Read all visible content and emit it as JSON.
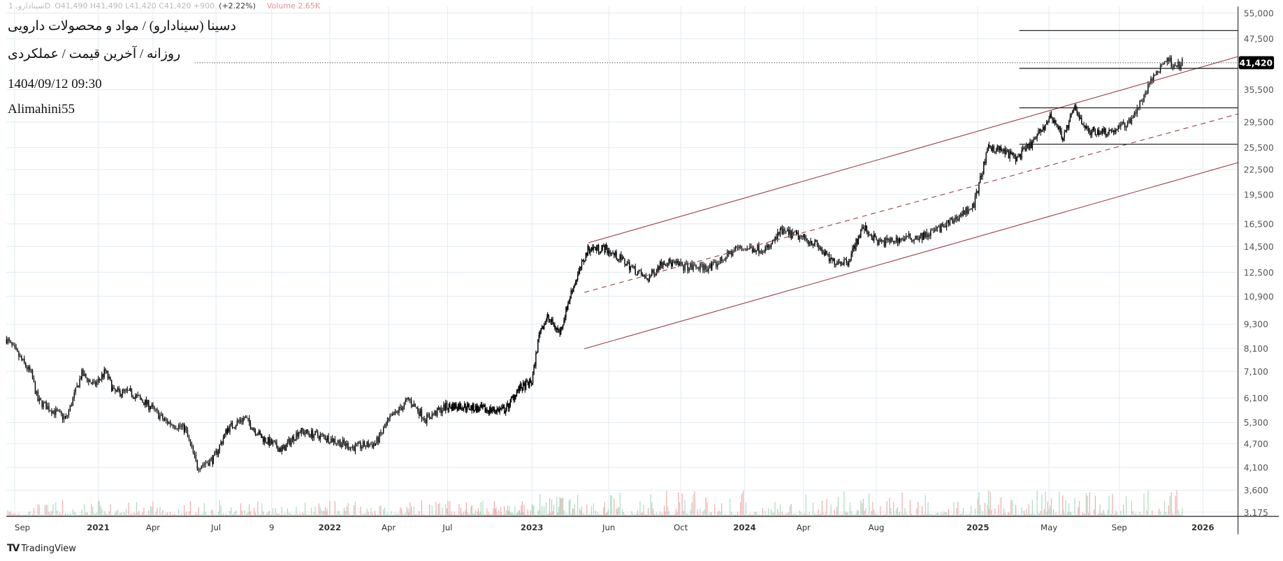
{
  "legend": {
    "symbol": "سینادارو, 1D",
    "ohlc": "O41,490 H41,490 L41,420 C41,420 +900",
    "change": "(+2.22%)",
    "volume": "Volume 2.65K"
  },
  "overlay": {
    "title": "دسینا (سینادارو) / مواد و محصولات دارویی",
    "subtitle": "روزانه / آخرین قیمت / عملکردی",
    "datetime": "1404/09/12 09:30",
    "author": "Alimahini55"
  },
  "footer": {
    "brand": "TradingView",
    "logo_icon": "tradingview-logo-icon"
  },
  "chart_data": {
    "type": "candlestick",
    "yscale": "log",
    "ylim": [
      3175,
      55000
    ],
    "grid": true,
    "last_price": 41420,
    "last_price_label": "41,420",
    "colors": {
      "candle": "#000000",
      "trendline": "#a04a50",
      "volume_up": "#a8dcc0",
      "volume_down": "#f4a8a8",
      "last_price_bg": "#000000"
    },
    "yticks": [
      "55,000",
      "47,500",
      "35,500",
      "29,500",
      "25,500",
      "22,500",
      "19,500",
      "16,500",
      "14,500",
      "12,500",
      "10,900",
      "9,300",
      "8,100",
      "7,100",
      "6,100",
      "5,300",
      "4,700",
      "4,100",
      "3,600",
      "3,175"
    ],
    "xticks": [
      {
        "label": "Sep",
        "date": "2020-09-01"
      },
      {
        "label": "2021",
        "date": "2021-01-01"
      },
      {
        "label": "Apr",
        "date": "2021-04-01"
      },
      {
        "label": "Jul",
        "date": "2021-07-01"
      },
      {
        "label": "9",
        "date": "2021-10-01"
      },
      {
        "label": "2022",
        "date": "2022-01-01"
      },
      {
        "label": "Apr",
        "date": "2022-04-01"
      },
      {
        "label": "Jul",
        "date": "2022-07-01"
      },
      {
        "label": "2023",
        "date": "2023-01-01"
      },
      {
        "label": "Jun",
        "date": "2023-06-01"
      },
      {
        "label": "Oct",
        "date": "2023-10-01"
      },
      {
        "label": "2024",
        "date": "2024-01-01"
      },
      {
        "label": "Apr",
        "date": "2024-04-01"
      },
      {
        "label": "Aug",
        "date": "2024-08-01"
      },
      {
        "label": "2025",
        "date": "2025-01-01"
      },
      {
        "label": "May",
        "date": "2025-05-01"
      },
      {
        "label": "Sep",
        "date": "2025-09-01"
      },
      {
        "label": "2026",
        "date": "2026-01-01"
      }
    ],
    "series": [
      [
        "2020-08-20",
        8540
      ],
      [
        "2020-09-25",
        7000
      ],
      [
        "2020-10-05",
        6000
      ],
      [
        "2020-11-15",
        5410
      ],
      [
        "2020-12-08",
        7000
      ],
      [
        "2020-12-26",
        6550
      ],
      [
        "2021-01-13",
        7100
      ],
      [
        "2021-01-27",
        6300
      ],
      [
        "2021-02-23",
        6300
      ],
      [
        "2021-03-28",
        5800
      ],
      [
        "2021-04-18",
        5350
      ],
      [
        "2021-05-17",
        5120
      ],
      [
        "2021-06-04",
        4120
      ],
      [
        "2021-06-27",
        4300
      ],
      [
        "2021-07-20",
        5120
      ],
      [
        "2021-08-17",
        5450
      ],
      [
        "2021-09-15",
        4860
      ],
      [
        "2021-10-18",
        4530
      ],
      [
        "2021-11-13",
        5050
      ],
      [
        "2021-12-28",
        4860
      ],
      [
        "2022-02-05",
        4600
      ],
      [
        "2022-03-12",
        4700
      ],
      [
        "2022-04-01",
        5350
      ],
      [
        "2022-05-02",
        6050
      ],
      [
        "2022-05-28",
        5410
      ],
      [
        "2022-06-28",
        5800
      ],
      [
        "2022-07-30",
        5830
      ],
      [
        "2022-09-21",
        5700
      ],
      [
        "2022-11-05",
        5700
      ],
      [
        "2022-12-01",
        6390
      ],
      [
        "2023-01-01",
        6680
      ],
      [
        "2023-01-17",
        9020
      ],
      [
        "2023-02-01",
        9650
      ],
      [
        "2023-02-25",
        8860
      ],
      [
        "2023-03-20",
        11250
      ],
      [
        "2023-04-22",
        14330
      ],
      [
        "2023-05-25",
        14330
      ],
      [
        "2023-06-26",
        13330
      ],
      [
        "2023-08-05",
        12000
      ],
      [
        "2023-09-01",
        13330
      ],
      [
        "2023-10-11",
        12880
      ],
      [
        "2023-11-15",
        12880
      ],
      [
        "2023-12-20",
        14330
      ],
      [
        "2024-02-07",
        14330
      ],
      [
        "2024-02-26",
        15820
      ],
      [
        "2024-03-22",
        15400
      ],
      [
        "2024-04-20",
        14800
      ],
      [
        "2024-05-17",
        13330
      ],
      [
        "2024-06-14",
        13330
      ],
      [
        "2024-07-10",
        16200
      ],
      [
        "2024-08-05",
        14800
      ],
      [
        "2024-09-05",
        15100
      ],
      [
        "2024-10-12",
        15400
      ],
      [
        "2024-11-18",
        16500
      ],
      [
        "2024-12-26",
        18400
      ],
      [
        "2025-01-07",
        21900
      ],
      [
        "2025-01-20",
        25690
      ],
      [
        "2025-02-10",
        25100
      ],
      [
        "2025-03-08",
        24000
      ],
      [
        "2025-04-05",
        26400
      ],
      [
        "2025-05-05",
        30620
      ],
      [
        "2025-05-26",
        27000
      ],
      [
        "2025-06-15",
        32070
      ],
      [
        "2025-07-07",
        28020
      ],
      [
        "2025-08-20",
        28020
      ],
      [
        "2025-09-15",
        29500
      ],
      [
        "2025-10-03",
        33150
      ],
      [
        "2025-10-21",
        38300
      ],
      [
        "2025-11-08",
        42150
      ],
      [
        "2025-11-26",
        40800
      ],
      [
        "2025-12-03",
        41420
      ]
    ],
    "trendlines": [
      {
        "kind": "channel-upper",
        "style": "solid",
        "from": [
          "2023-04-22",
          14800
        ],
        "to": [
          "2026-03-10",
          42900
        ]
      },
      {
        "kind": "channel-middle",
        "style": "dashed",
        "from": [
          "2023-04-14",
          11150
        ],
        "to": [
          "2026-03-10",
          30900
        ]
      },
      {
        "kind": "channel-lower",
        "style": "solid",
        "from": [
          "2023-04-14",
          8080
        ],
        "to": [
          "2026-03-10",
          23400
        ]
      }
    ],
    "horizontal_levels": [
      {
        "price": 49800,
        "from": "2025-03-12"
      },
      {
        "price": 40100,
        "from": "2025-03-12"
      },
      {
        "price": 32000,
        "from": "2025-03-12"
      },
      {
        "price": 26000,
        "from": "2025-03-12"
      }
    ]
  }
}
